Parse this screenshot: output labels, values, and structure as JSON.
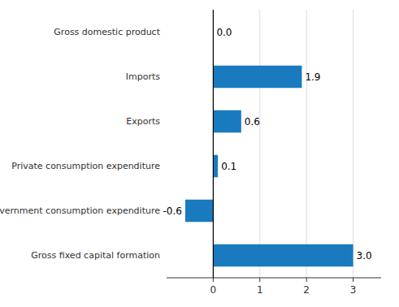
{
  "chart_data": {
    "type": "bar",
    "orientation": "horizontal",
    "categories": [
      "Gross fixed capital formation",
      "Government consumption expenditure",
      "Private consumption expenditure",
      "Exports",
      "Imports",
      "Gross domestic product"
    ],
    "values": [
      3.0,
      -0.6,
      0.1,
      0.6,
      1.9,
      0.0
    ],
    "value_labels": [
      "3.0",
      "-0.6",
      "0.1",
      "0.6",
      "1.9",
      "0.0"
    ],
    "color": "#1a7abf",
    "xlim": [
      -1.0,
      3.6
    ],
    "xticks": [
      0,
      1,
      2,
      3
    ],
    "grid": true,
    "data_labels": true
  }
}
